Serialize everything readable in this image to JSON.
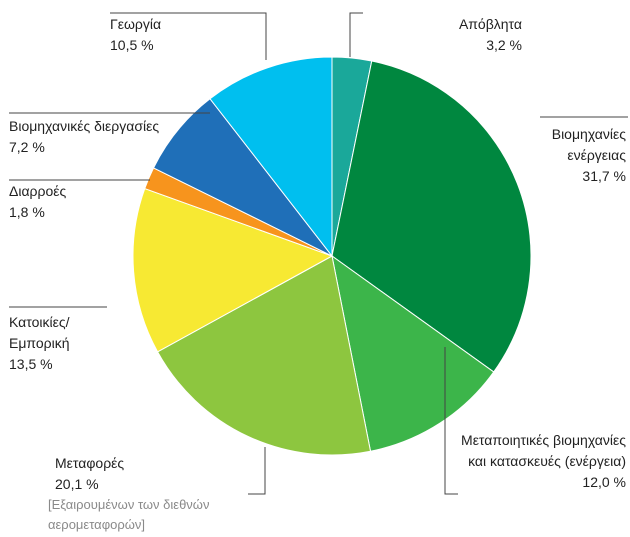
{
  "chart_data": {
    "type": "pie",
    "start_angle_deg": 0,
    "direction": "clockwise",
    "slices": [
      {
        "label_lines": [
          "Απόβλητα"
        ],
        "value_text": "3,2 %",
        "value": 3.2,
        "color": "#1aa89a"
      },
      {
        "label_lines": [
          "Βιομηχανίες",
          "ενέργειας"
        ],
        "value_text": "31,7 %",
        "value": 31.7,
        "color": "#00873f"
      },
      {
        "label_lines": [
          "Μεταποιητικές βιομηχανίες",
          "και κατασκευές (ενέργεια)"
        ],
        "value_text": "12,0 %",
        "value": 12.0,
        "color": "#3cb54a"
      },
      {
        "label_lines": [
          "Μεταφορές"
        ],
        "value_text": "20,1 %",
        "value": 20.1,
        "color": "#8dc63f",
        "note_lines": [
          "[Εξαιρουμένων των διεθνών",
          "αερομεταφορών]"
        ]
      },
      {
        "label_lines": [
          "Κατοικίες/",
          "Εμπορική"
        ],
        "value_text": "13,5 %",
        "value": 13.5,
        "color": "#f7e933"
      },
      {
        "label_lines": [
          "Διαρροές"
        ],
        "value_text": "1,8 %",
        "value": 1.8,
        "color": "#f7941d"
      },
      {
        "label_lines": [
          "Βιομηχανικές διεργασίες"
        ],
        "value_text": "7,2 %",
        "value": 7.2,
        "color": "#1f6fb8"
      },
      {
        "label_lines": [
          "Γεωργία"
        ],
        "value_text": "10,5 %",
        "value": 10.5,
        "color": "#00bfef"
      }
    ]
  }
}
